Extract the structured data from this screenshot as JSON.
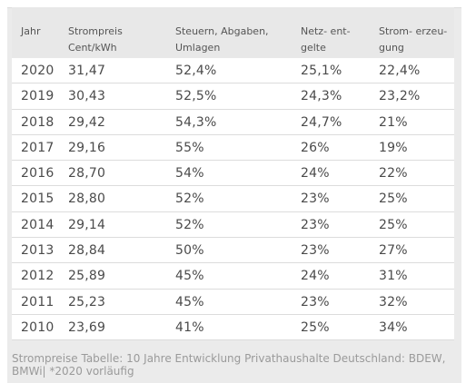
{
  "table": {
    "headers": [
      "Jahr",
      "Strompreis\nCent/kWh",
      "Steuern, Abgaben,\nUmlagen",
      "Netz- ent-\ngelte",
      "Strom- erzeu-\ngung"
    ],
    "rows": [
      [
        "2020",
        "31,47",
        "52,4%",
        "25,1%",
        "22,4%"
      ],
      [
        "2019",
        "30,43",
        "52,5%",
        "24,3%",
        "23,2%"
      ],
      [
        "2018",
        "29,42",
        "54,3%",
        "24,7%",
        "21%"
      ],
      [
        "2017",
        "29,16",
        "55%",
        "26%",
        "19%"
      ],
      [
        "2016",
        "28,70",
        "54%",
        "24%",
        "22%"
      ],
      [
        "2015",
        "28,80",
        "52%",
        "23%",
        "25%"
      ],
      [
        "2014",
        "29,14",
        "52%",
        "23%",
        "25%"
      ],
      [
        "2013",
        "28,84",
        "50%",
        "23%",
        "27%"
      ],
      [
        "2012",
        "25,89",
        "45%",
        "24%",
        "31%"
      ],
      [
        "2011",
        "25,23",
        "45%",
        "23%",
        "32%"
      ],
      [
        "2010",
        "23,69",
        "41%",
        "25%",
        "34%"
      ]
    ]
  },
  "caption": "Strompreise Tabelle: 10 Jahre Entwicklung Privathaushalte Deutschland: BDEW, BMWi| *2020 vorläufig"
}
